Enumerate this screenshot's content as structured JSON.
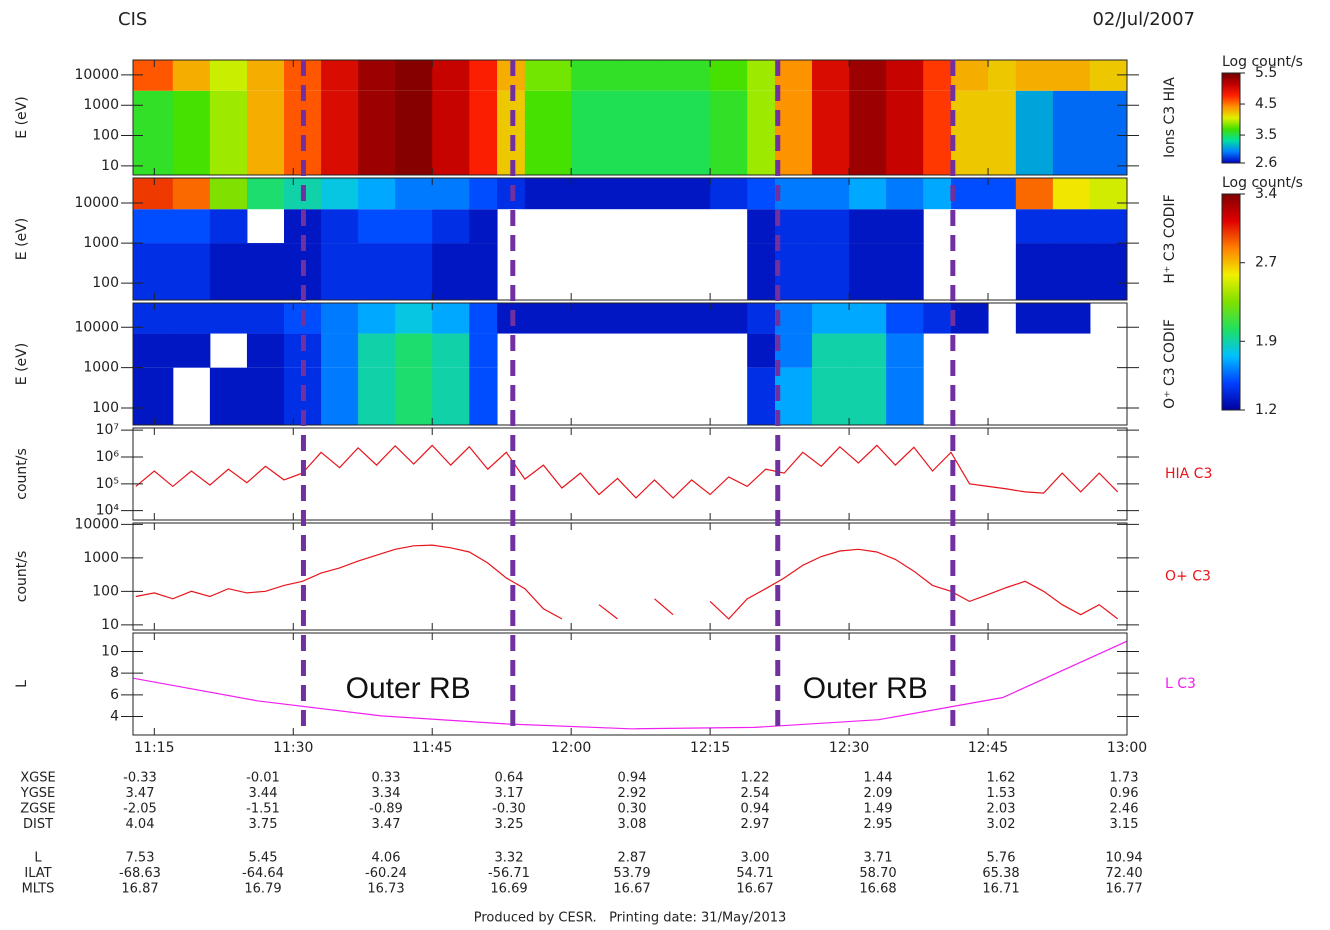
{
  "header": {
    "title": "CIS",
    "date": "02/Jul/2007"
  },
  "chart_data": [
    {
      "type": "heatmap",
      "ylabel": "E (eV)",
      "name": "Ions C3 HIA",
      "log_y": true,
      "colorbar": 0,
      "xlim": [
        672.7,
        780
      ],
      "ylim": [
        5,
        31000
      ],
      "yticks": [
        10,
        100,
        1000,
        10000
      ],
      "x_edges": [
        672.7,
        677,
        681,
        685,
        689,
        693,
        697,
        701,
        705,
        709,
        712,
        715,
        720,
        725,
        730,
        735,
        739,
        742,
        746,
        750,
        754,
        758,
        761,
        765,
        768,
        772,
        776,
        780
      ],
      "y_edges": [
        5,
        3000,
        31000
      ],
      "z": [
        [
          3.6,
          3.7,
          3.9,
          4.3,
          4.6,
          5.0,
          5.3,
          5.4,
          5.1,
          4.8,
          4.2,
          3.7,
          3.5,
          3.5,
          3.5,
          3.6,
          3.9,
          4.4,
          5.0,
          5.3,
          5.1,
          4.7,
          4.2,
          4.2,
          3.1,
          2.9,
          2.9
        ],
        [
          4.6,
          4.3,
          4.0,
          4.3,
          4.6,
          5.0,
          5.3,
          5.4,
          5.1,
          4.8,
          4.3,
          3.8,
          3.6,
          3.6,
          3.6,
          3.7,
          3.9,
          4.4,
          5.0,
          5.3,
          5.1,
          4.7,
          4.3,
          4.2,
          4.3,
          4.3,
          4.2
        ]
      ]
    },
    {
      "type": "heatmap",
      "ylabel": "E (eV)",
      "name": "H⁺ C3 CODIF",
      "log_y": true,
      "colorbar": 1,
      "xlim": [
        672.7,
        780
      ],
      "ylim": [
        38,
        42000
      ],
      "yticks": [
        100,
        1000,
        10000
      ],
      "x_edges": [
        672.7,
        677,
        681,
        685,
        689,
        693,
        697,
        701,
        705,
        709,
        712,
        715,
        720,
        725,
        730,
        735,
        739,
        742,
        746,
        750,
        754,
        758,
        761,
        765,
        768,
        772,
        776,
        780
      ],
      "y_edges": [
        38,
        1000,
        7000,
        42000
      ],
      "z": [
        [
          1.4,
          1.4,
          1.3,
          1.3,
          1.3,
          1.4,
          1.4,
          1.4,
          1.3,
          1.3,
          null,
          null,
          null,
          null,
          null,
          null,
          1.3,
          1.4,
          1.4,
          1.3,
          1.3,
          null,
          null,
          null,
          1.3,
          1.3,
          1.3
        ],
        [
          1.5,
          1.5,
          1.4,
          null,
          1.3,
          1.4,
          1.5,
          1.5,
          1.4,
          1.3,
          null,
          null,
          null,
          null,
          null,
          null,
          1.3,
          1.4,
          1.4,
          1.3,
          1.3,
          null,
          null,
          null,
          1.4,
          1.4,
          1.4
        ],
        [
          3.0,
          2.9,
          2.3,
          2.0,
          1.9,
          1.8,
          1.7,
          1.6,
          1.6,
          1.5,
          1.4,
          1.3,
          1.3,
          1.3,
          1.3,
          1.4,
          1.5,
          1.6,
          1.6,
          1.7,
          1.6,
          1.7,
          1.5,
          1.5,
          2.9,
          2.6,
          2.5
        ]
      ]
    },
    {
      "type": "heatmap",
      "ylabel": "E (eV)",
      "name": "O⁺ C3 CODIF",
      "log_y": true,
      "colorbar": 1,
      "xlim": [
        672.7,
        780
      ],
      "ylim": [
        38,
        40000
      ],
      "yticks": [
        100,
        1000,
        10000
      ],
      "x_edges": [
        672.7,
        677,
        681,
        685,
        689,
        693,
        697,
        701,
        705,
        709,
        712,
        715,
        720,
        725,
        730,
        735,
        739,
        742,
        746,
        750,
        754,
        758,
        761,
        765,
        768,
        772,
        776,
        780
      ],
      "y_edges": [
        38,
        1000,
        7000,
        40000
      ],
      "z": [
        [
          1.3,
          null,
          1.3,
          1.3,
          1.4,
          1.6,
          1.9,
          2.0,
          1.9,
          1.5,
          null,
          null,
          null,
          null,
          null,
          null,
          1.4,
          1.7,
          1.9,
          1.9,
          1.6,
          null,
          null,
          null,
          null,
          null,
          null
        ],
        [
          1.3,
          1.3,
          null,
          1.3,
          1.4,
          1.6,
          1.9,
          2.0,
          1.9,
          1.5,
          null,
          null,
          null,
          null,
          null,
          null,
          1.3,
          1.6,
          1.9,
          1.9,
          1.6,
          null,
          null,
          null,
          null,
          null,
          null
        ],
        [
          1.4,
          1.4,
          1.4,
          1.4,
          1.5,
          1.6,
          1.7,
          1.8,
          1.7,
          1.5,
          1.3,
          1.3,
          1.3,
          1.3,
          1.3,
          1.3,
          1.4,
          1.6,
          1.7,
          1.7,
          1.5,
          1.4,
          1.3,
          null,
          1.3,
          1.3,
          null
        ]
      ]
    },
    {
      "type": "line",
      "ylabel": "count/s",
      "log_y": true,
      "xlim": [
        672.7,
        780
      ],
      "ylim": [
        4500,
        12000000
      ],
      "yticks": [
        {
          "value": 10000,
          "label": "10⁴"
        },
        {
          "value": 100000,
          "label": "10⁵"
        },
        {
          "value": 1000000,
          "label": "10⁶"
        },
        {
          "value": 10000000,
          "label": "10⁷"
        }
      ],
      "x": [
        673,
        675,
        677,
        679,
        681,
        683,
        685,
        687,
        689,
        691,
        693,
        695,
        697,
        699,
        701,
        703,
        705,
        707,
        709,
        711,
        713,
        715,
        717,
        719,
        721,
        723,
        725,
        727,
        729,
        731,
        733,
        735,
        737,
        739,
        741,
        743,
        745,
        747,
        749,
        751,
        753,
        755,
        757,
        759,
        761,
        763,
        765,
        767,
        769,
        771,
        773,
        775,
        777,
        779
      ],
      "series": [
        {
          "name": "HIA C3",
          "color": "#e8141c",
          "values": [
            80000,
            300000,
            80000,
            300000,
            90000,
            350000,
            110000,
            450000,
            140000,
            250000,
            1500000,
            400000,
            2200000,
            500000,
            2600000,
            550000,
            2700000,
            500000,
            2400000,
            350000,
            1500000,
            150000,
            500000,
            70000,
            250000,
            40000,
            160000,
            30000,
            140000,
            30000,
            140000,
            40000,
            180000,
            80000,
            350000,
            250000,
            1500000,
            450000,
            2400000,
            600000,
            2700000,
            500000,
            2300000,
            300000,
            1500000,
            100000,
            80000,
            65000,
            50000,
            45000,
            250000,
            50000,
            250000,
            50000
          ]
        }
      ]
    },
    {
      "type": "line",
      "ylabel": "count/s",
      "log_y": true,
      "xlim": [
        672.7,
        780
      ],
      "ylim": [
        7,
        11000
      ],
      "yticks": [
        10,
        100,
        1000,
        10000
      ],
      "x": [
        673,
        675,
        677,
        679,
        681,
        683,
        685,
        687,
        689,
        691,
        693,
        695,
        697,
        699,
        701,
        703,
        705,
        707,
        709,
        711,
        713,
        715,
        717,
        719,
        721,
        723,
        725,
        727,
        729,
        731,
        733,
        735,
        737,
        739,
        741,
        743,
        745,
        747,
        749,
        751,
        753,
        755,
        757,
        759,
        761,
        763,
        765,
        767,
        769,
        771,
        773,
        775,
        777,
        779
      ],
      "series": [
        {
          "name": "O+ C3",
          "color": "#e8141c",
          "values": [
            70,
            90,
            60,
            100,
            70,
            120,
            90,
            100,
            150,
            200,
            350,
            500,
            800,
            1200,
            1800,
            2300,
            2400,
            2000,
            1500,
            700,
            250,
            120,
            30,
            15,
            null,
            40,
            15,
            null,
            60,
            20,
            null,
            50,
            15,
            60,
            120,
            250,
            600,
            1100,
            1600,
            1800,
            1500,
            900,
            400,
            150,
            100,
            50,
            80,
            130,
            200,
            100,
            40,
            20,
            40,
            15
          ]
        }
      ]
    },
    {
      "type": "line",
      "ylabel": "L",
      "log_y": false,
      "xlim": [
        672.7,
        780
      ],
      "ylim": [
        2.3,
        11.7
      ],
      "yticks": [
        4,
        6,
        8,
        10
      ],
      "xticks": [
        {
          "value": 675,
          "label": "11:15"
        },
        {
          "value": 690,
          "label": "11:30"
        },
        {
          "value": 705,
          "label": "11:45"
        },
        {
          "value": 720,
          "label": "12:00"
        },
        {
          "value": 735,
          "label": "12:15"
        },
        {
          "value": 750,
          "label": "12:30"
        },
        {
          "value": 765,
          "label": "12:45"
        },
        {
          "value": 780,
          "label": "13:00"
        }
      ],
      "x": [
        672.7,
        686.1,
        699.5,
        712.9,
        726.4,
        739.8,
        753.2,
        766.6,
        780
      ],
      "series": [
        {
          "name": "L C3",
          "color": "#f020f0",
          "values": [
            7.53,
            5.45,
            4.06,
            3.32,
            2.87,
            3.0,
            3.71,
            5.76,
            10.94
          ]
        }
      ],
      "annotations": [
        "Outer RB",
        "Outer RB"
      ]
    }
  ],
  "markers": {
    "color": "#7030a0",
    "x": [
      691.1,
      713.7,
      742.3,
      761.2
    ]
  },
  "colorbars": [
    {
      "label": "Log count/s",
      "lim": [
        2.6,
        5.5
      ],
      "ticks": [
        2.6,
        3.5,
        4.5,
        5.5
      ],
      "colors": [
        "#0000c0",
        "#0080ff",
        "#00e0a0",
        "#40e000",
        "#e0f000",
        "#ff9000",
        "#ff2000",
        "#c00000",
        "#700000"
      ]
    },
    {
      "label": "Log count/s",
      "lim": [
        1.2,
        3.4
      ],
      "ticks": [
        1.2,
        1.9,
        2.7,
        3.4
      ],
      "colors": [
        "#0000a0",
        "#0040ff",
        "#00c0ff",
        "#20e060",
        "#80e000",
        "#f0f000",
        "#ff8000",
        "#e00000",
        "#800000"
      ]
    }
  ],
  "ephemeris": [
    {
      "label": "XGSE",
      "values": [
        "-0.33",
        "-0.01",
        "0.33",
        "0.64",
        "0.94",
        "1.22",
        "1.44",
        "1.62",
        "1.73"
      ]
    },
    {
      "label": "YGSE",
      "values": [
        "3.47",
        "3.44",
        "3.34",
        "3.17",
        "2.92",
        "2.54",
        "2.09",
        "1.53",
        "0.96"
      ]
    },
    {
      "label": "ZGSE",
      "values": [
        "-2.05",
        "-1.51",
        "-0.89",
        "-0.30",
        "0.30",
        "0.94",
        "1.49",
        "2.03",
        "2.46"
      ]
    },
    {
      "label": "DIST",
      "values": [
        "4.04",
        "3.75",
        "3.47",
        "3.25",
        "3.08",
        "2.97",
        "2.95",
        "3.02",
        "3.15"
      ]
    },
    {
      "label": "L",
      "values": [
        "7.53",
        "5.45",
        "4.06",
        "3.32",
        "2.87",
        "3.00",
        "3.71",
        "5.76",
        "10.94"
      ]
    },
    {
      "label": "ILAT",
      "values": [
        "-68.63",
        "-64.64",
        "-60.24",
        "-56.71",
        "53.79",
        "54.71",
        "58.70",
        "65.38",
        "72.40"
      ]
    },
    {
      "label": "MLTS",
      "values": [
        "16.87",
        "16.79",
        "16.73",
        "16.69",
        "16.67",
        "16.67",
        "16.68",
        "16.71",
        "16.77"
      ]
    }
  ],
  "footer": "Produced by CESR.   Printing date: 31/May/2013"
}
